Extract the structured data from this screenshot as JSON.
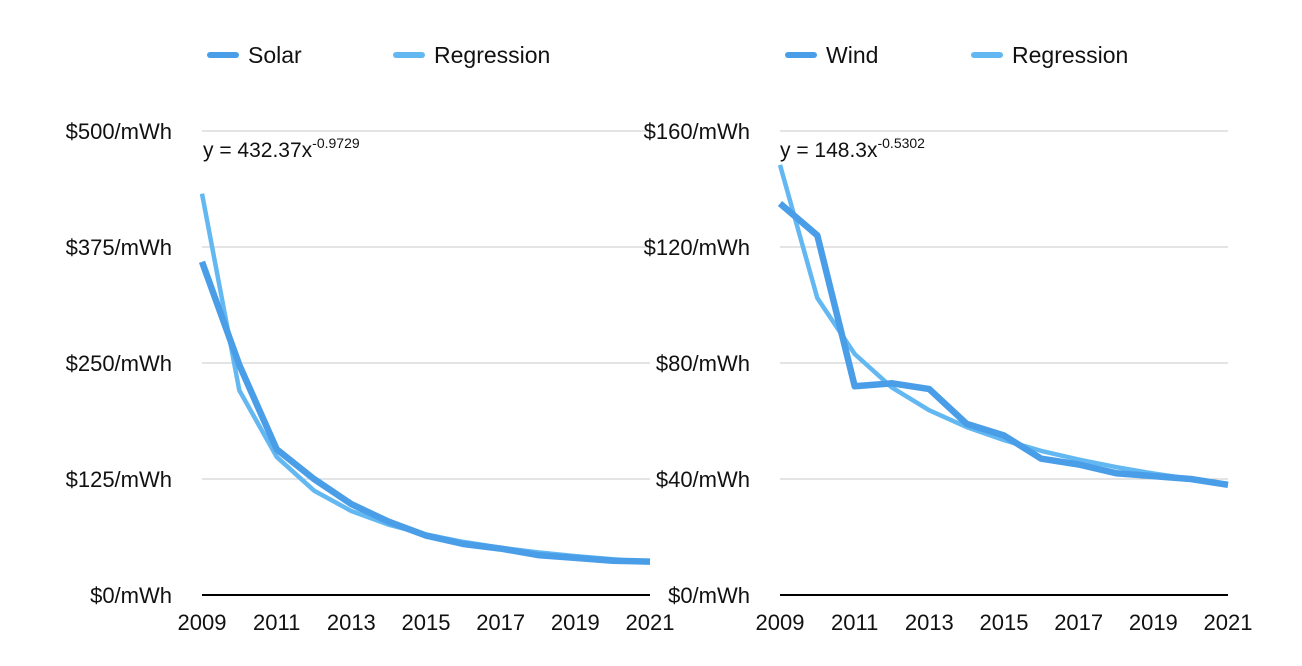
{
  "colors": {
    "series": "#4a9ee8",
    "regression": "#64b8f2",
    "grid": "#c8c8c8",
    "axis": "#000000",
    "text": "#111111"
  },
  "chart_data": [
    {
      "type": "line",
      "x": [
        2009,
        2010,
        2011,
        2012,
        2013,
        2014,
        2015,
        2016,
        2017,
        2018,
        2019,
        2020,
        2021
      ],
      "xticks": [
        "2009",
        "2011",
        "2013",
        "2015",
        "2017",
        "2019",
        "2021"
      ],
      "ylim": [
        0,
        500
      ],
      "yticks": [
        "$0/mWh",
        "$125/mWh",
        "$250/mWh",
        "$375/mWh",
        "$500/mWh"
      ],
      "grid": true,
      "legend_position": "top",
      "equation": {
        "base": "y = 432.37x",
        "exponent": "-0.9729"
      },
      "series": [
        {
          "name": "Solar",
          "role": "data",
          "values": [
            359,
            248,
            157,
            125,
            98,
            79,
            64,
            55,
            50,
            43,
            40,
            37,
            36
          ]
        },
        {
          "name": "Regression",
          "role": "regression",
          "values": [
            432.4,
            220.6,
            148.8,
            112.5,
            90.5,
            75.8,
            65.2,
            57.2,
            51.0,
            46.0,
            41.9,
            38.5,
            35.6
          ]
        }
      ]
    },
    {
      "type": "line",
      "x": [
        2009,
        2010,
        2011,
        2012,
        2013,
        2014,
        2015,
        2016,
        2017,
        2018,
        2019,
        2020,
        2021
      ],
      "xticks": [
        "2009",
        "2011",
        "2013",
        "2015",
        "2017",
        "2019",
        "2021"
      ],
      "ylim": [
        0,
        160
      ],
      "yticks": [
        "$0/mWh",
        "$40/mWh",
        "$80/mWh",
        "$120/mWh",
        "$160/mWh"
      ],
      "grid": true,
      "legend_position": "top",
      "equation": {
        "base": "y = 148.3x",
        "exponent": "-0.5302"
      },
      "series": [
        {
          "name": "Wind",
          "role": "data",
          "values": [
            135,
            124,
            72,
            73,
            71,
            59,
            55,
            47,
            45,
            42,
            41,
            40,
            38
          ]
        },
        {
          "name": "Regression",
          "role": "regression",
          "values": [
            148.3,
            102.4,
            83.1,
            71.5,
            63.7,
            57.9,
            53.4,
            49.7,
            46.7,
            44.1,
            41.9,
            40.0,
            38.3
          ]
        }
      ]
    }
  ]
}
